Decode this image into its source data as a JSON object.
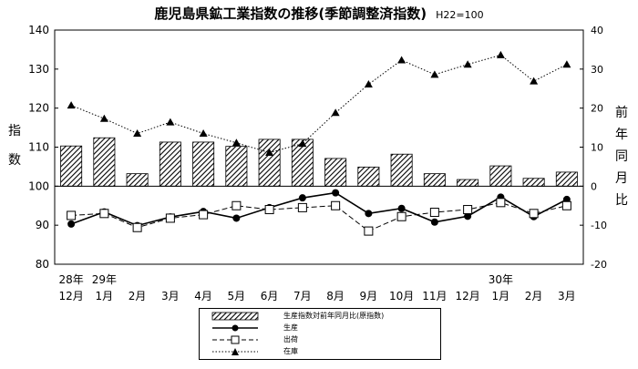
{
  "chart_data": {
    "type": "bar+line",
    "title": "鹿児島県鉱工業指数の推移(季節調整済指数)",
    "subtitle": "H22=100",
    "ylabel_left": "指数",
    "ylabel_right": "前年同月比",
    "ylim_left": [
      80,
      140
    ],
    "yticks_left": [
      "80",
      "90",
      "100",
      "110",
      "120",
      "130",
      "140"
    ],
    "ylim_right": [
      -20,
      40
    ],
    "yticks_right": [
      "-20",
      "-10",
      "0",
      "10",
      "20",
      "30",
      "40"
    ],
    "categories": [
      "12月",
      "1月",
      "2月",
      "3月",
      "4月",
      "5月",
      "6月",
      "7月",
      "8月",
      "9月",
      "10月",
      "11月",
      "12月",
      "1月",
      "2月",
      "3月"
    ],
    "year_labels": [
      {
        "index": 0,
        "label": "28年"
      },
      {
        "index": 1,
        "label": "29年"
      },
      {
        "index": 13,
        "label": "30年"
      }
    ],
    "series": [
      {
        "name": "生産指数対前年同月比(原指数)",
        "kind": "bar",
        "axis": "right",
        "values": [
          10.3,
          12.4,
          3.2,
          11.3,
          11.3,
          10.2,
          12.0,
          12.0,
          7.1,
          4.9,
          8.2,
          3.2,
          1.7,
          5.2,
          2.0,
          3.6
        ]
      },
      {
        "name": "生産",
        "kind": "line",
        "axis": "left",
        "marker": "circle",
        "dash": "solid",
        "values": [
          90.3,
          93.4,
          89.9,
          92.1,
          93.5,
          91.8,
          94.5,
          97.0,
          98.3,
          93.0,
          94.3,
          90.8,
          92.3,
          97.2,
          92.2,
          96.6
        ]
      },
      {
        "name": "出荷",
        "kind": "line",
        "axis": "left",
        "marker": "square",
        "dash": "dashed",
        "values": [
          92.5,
          93.0,
          89.4,
          91.8,
          92.7,
          95.0,
          94.0,
          94.5,
          95.0,
          88.5,
          92.2,
          93.3,
          94.0,
          95.8,
          93.0,
          95.0
        ]
      },
      {
        "name": "在庫",
        "kind": "line",
        "axis": "left",
        "marker": "triangle",
        "dash": "dotted",
        "values": [
          120.7,
          117.3,
          113.5,
          116.4,
          113.5,
          111.1,
          108.6,
          110.9,
          118.8,
          126.1,
          132.3,
          128.6,
          131.2,
          133.6,
          126.9,
          131.2
        ]
      }
    ],
    "grid": false,
    "legend_position": "bottom-center"
  }
}
